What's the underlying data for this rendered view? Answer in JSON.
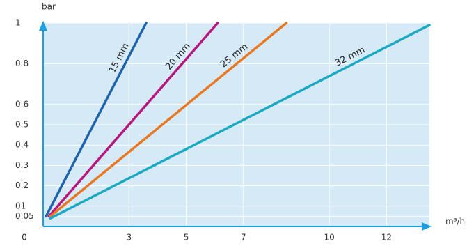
{
  "chart_data": {
    "type": "line",
    "ylabel": "bar",
    "xlabel": "m³/h",
    "xlim": [
      0,
      13.5
    ],
    "ylim": [
      0,
      1
    ],
    "xticks": [
      0,
      3,
      5,
      7,
      10,
      12
    ],
    "yticks": [
      0.05,
      {
        "value": 0.1,
        "label": "01"
      },
      0.2,
      0.3,
      0.4,
      0.5,
      0.6,
      0.8,
      1
    ],
    "grid": true,
    "series": [
      {
        "name": "15 mm",
        "color": "#1f63ad",
        "x": [
          0.1,
          3.6
        ],
        "values": [
          0.05,
          1.0
        ]
      },
      {
        "name": "20 mm",
        "color": "#b5177e",
        "x": [
          0.2,
          6.1
        ],
        "values": [
          0.05,
          1.0
        ]
      },
      {
        "name": "25 mm",
        "color": "#e87722",
        "x": [
          0.25,
          8.5
        ],
        "values": [
          0.05,
          1.0
        ]
      },
      {
        "name": "32 mm",
        "color": "#1aa9c2",
        "x": [
          0.25,
          13.5
        ],
        "values": [
          0.04,
          0.99
        ]
      }
    ]
  }
}
